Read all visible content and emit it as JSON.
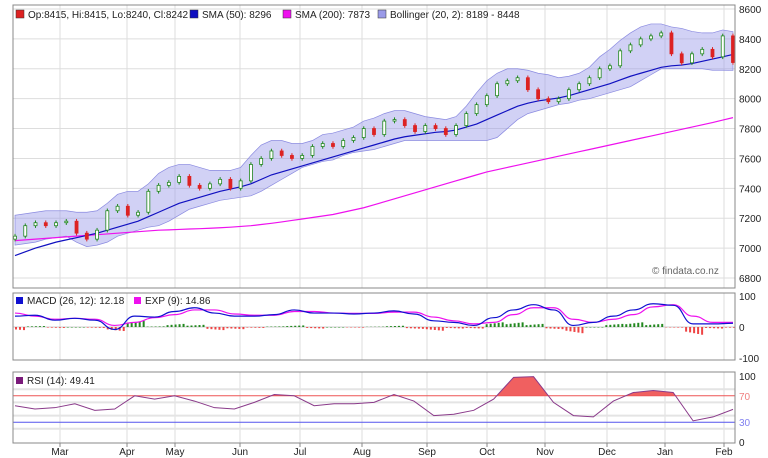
{
  "chart_data": [
    {
      "type": "candlestick",
      "legend": {
        "ohlc": {
          "label": "Op:8415, Hi:8415, Lo:8240, Cl:8242",
          "color": "#dd2222"
        },
        "sma50": {
          "label": "SMA (50): 8296",
          "color": "#1010c0"
        },
        "sma200": {
          "label": "SMA (200): 7873",
          "color": "#ee11ee"
        },
        "bollinger": {
          "label": "Bollinger (20, 2): 8189 - 8448",
          "color": "#9a9ae8"
        }
      },
      "watermark": "© findata.co.nz",
      "ylim": [
        6800,
        8600
      ],
      "yticks": [
        "6800",
        "7000",
        "7200",
        "7400",
        "7600",
        "7800",
        "8000",
        "8200",
        "8400",
        "8600"
      ],
      "grid": true,
      "close": [
        7080,
        7150,
        7170,
        7150,
        7170,
        7180,
        7100,
        7060,
        7120,
        7250,
        7280,
        7220,
        7240,
        7380,
        7420,
        7440,
        7480,
        7420,
        7400,
        7430,
        7460,
        7400,
        7450,
        7560,
        7600,
        7650,
        7620,
        7600,
        7620,
        7680,
        7700,
        7680,
        7720,
        7740,
        7800,
        7760,
        7850,
        7860,
        7820,
        7780,
        7820,
        7800,
        7760,
        7820,
        7900,
        7960,
        8020,
        8100,
        8120,
        8140,
        8060,
        8000,
        7980,
        8000,
        8060,
        8100,
        8140,
        8200,
        8220,
        8320,
        8360,
        8400,
        8420,
        8440,
        8300,
        8240,
        8300,
        8330,
        8280,
        8420,
        8242
      ],
      "sma50": [
        6950,
        6975,
        7000,
        7020,
        7040,
        7055,
        7070,
        7085,
        7100,
        7120,
        7140,
        7160,
        7180,
        7210,
        7240,
        7270,
        7300,
        7320,
        7340,
        7360,
        7380,
        7395,
        7410,
        7430,
        7460,
        7490,
        7510,
        7530,
        7550,
        7570,
        7590,
        7610,
        7630,
        7650,
        7670,
        7690,
        7710,
        7730,
        7745,
        7755,
        7765,
        7775,
        7780,
        7790,
        7810,
        7830,
        7860,
        7890,
        7920,
        7950,
        7970,
        7985,
        7995,
        8005,
        8020,
        8040,
        8060,
        8080,
        8100,
        8125,
        8150,
        8170,
        8190,
        8210,
        8220,
        8225,
        8235,
        8250,
        8265,
        8280,
        8296
      ],
      "sma200": [
        7050,
        7055,
        7060,
        7065,
        7070,
        7075,
        7080,
        7085,
        7090,
        7095,
        7100,
        7105,
        7110,
        7115,
        7120,
        7122,
        7125,
        7128,
        7130,
        7133,
        7136,
        7140,
        7145,
        7150,
        7158,
        7166,
        7175,
        7185,
        7195,
        7205,
        7215,
        7225,
        7240,
        7255,
        7270,
        7290,
        7310,
        7330,
        7350,
        7370,
        7390,
        7410,
        7430,
        7450,
        7470,
        7490,
        7510,
        7525,
        7540,
        7555,
        7570,
        7585,
        7600,
        7615,
        7630,
        7645,
        7660,
        7675,
        7690,
        7705,
        7720,
        7735,
        7750,
        7765,
        7780,
        7795,
        7810,
        7825,
        7840,
        7857,
        7873
      ],
      "bollinger_upper": [
        7220,
        7230,
        7240,
        7250,
        7250,
        7250,
        7240,
        7240,
        7250,
        7300,
        7360,
        7380,
        7380,
        7430,
        7500,
        7540,
        7560,
        7560,
        7540,
        7520,
        7520,
        7520,
        7540,
        7620,
        7690,
        7720,
        7720,
        7700,
        7700,
        7720,
        7760,
        7770,
        7790,
        7810,
        7850,
        7870,
        7900,
        7920,
        7920,
        7900,
        7880,
        7870,
        7860,
        7880,
        7950,
        8040,
        8120,
        8170,
        8200,
        8200,
        8190,
        8170,
        8160,
        8140,
        8150,
        8170,
        8210,
        8280,
        8330,
        8390,
        8440,
        8480,
        8500,
        8500,
        8480,
        8470,
        8450,
        8440,
        8440,
        8460,
        8448
      ],
      "bollinger_lower": [
        7020,
        7030,
        7040,
        7060,
        7070,
        7080,
        7040,
        7010,
        7020,
        7040,
        7080,
        7100,
        7120,
        7140,
        7150,
        7180,
        7220,
        7260,
        7280,
        7300,
        7320,
        7330,
        7340,
        7350,
        7380,
        7420,
        7460,
        7500,
        7540,
        7560,
        7580,
        7590,
        7620,
        7640,
        7650,
        7660,
        7680,
        7700,
        7720,
        7720,
        7720,
        7720,
        7720,
        7720,
        7720,
        7720,
        7720,
        7740,
        7800,
        7860,
        7900,
        7920,
        7940,
        7960,
        7970,
        7990,
        8000,
        8020,
        8040,
        8060,
        8080,
        8120,
        8160,
        8200,
        8200,
        8200,
        8200,
        8200,
        8190,
        8190,
        8189
      ]
    },
    {
      "type": "line",
      "legend": {
        "macd": {
          "label": "MACD (26, 12): 12.18",
          "color": "#1010d0"
        },
        "signal": {
          "label": "EXP (9): 14.86",
          "color": "#ee11ee"
        }
      },
      "ylim": [
        -100,
        100
      ],
      "yticks": [
        "100",
        "0",
        "-100"
      ],
      "macd": [
        35,
        38,
        22,
        28,
        22,
        -8,
        35,
        32,
        50,
        62,
        45,
        35,
        35,
        40,
        55,
        45,
        45,
        42,
        45,
        52,
        42,
        20,
        15,
        5,
        30,
        55,
        72,
        55,
        5,
        15,
        35,
        55,
        75,
        70,
        10,
        10,
        12
      ],
      "signal": [
        45,
        35,
        25,
        28,
        25,
        5,
        15,
        30,
        40,
        55,
        55,
        42,
        38,
        38,
        50,
        50,
        45,
        44,
        44,
        48,
        48,
        32,
        20,
        10,
        15,
        40,
        62,
        62,
        25,
        15,
        25,
        40,
        65,
        72,
        35,
        15,
        15
      ],
      "histogram_colors": {
        "positive": "#22881f",
        "negative": "#ee4444"
      }
    },
    {
      "type": "area-line",
      "legend": {
        "rsi": {
          "label": "RSI (14): 49.41",
          "color": "#7a1a7a"
        }
      },
      "ylim": [
        0,
        100
      ],
      "yticks": [
        "100",
        "70",
        "30",
        "0"
      ],
      "overbought": 70,
      "oversold": 30,
      "rsi": [
        55,
        50,
        52,
        58,
        48,
        50,
        70,
        65,
        70,
        62,
        52,
        50,
        60,
        72,
        70,
        55,
        58,
        58,
        60,
        72,
        62,
        40,
        42,
        48,
        65,
        98,
        99,
        60,
        40,
        38,
        62,
        75,
        78,
        75,
        32,
        38,
        49.41
      ]
    }
  ],
  "months": [
    "Mar",
    "Apr",
    "May",
    "Jun",
    "Jul",
    "Aug",
    "Sep",
    "Oct",
    "Nov",
    "Dec",
    "Jan",
    "Feb"
  ]
}
